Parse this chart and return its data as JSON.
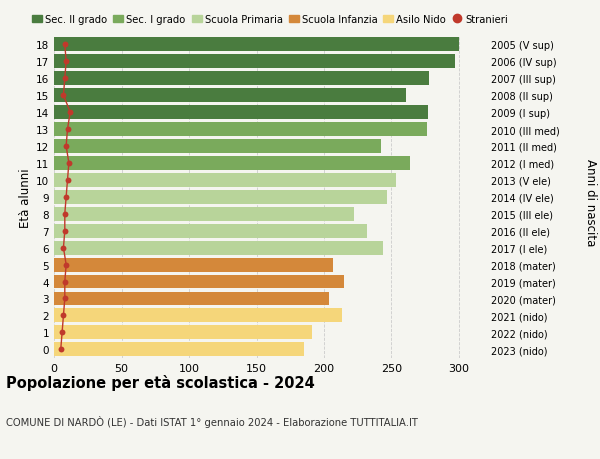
{
  "ages": [
    18,
    17,
    16,
    15,
    14,
    13,
    12,
    11,
    10,
    9,
    8,
    7,
    6,
    5,
    4,
    3,
    2,
    1,
    0
  ],
  "years": [
    "2005 (V sup)",
    "2006 (IV sup)",
    "2007 (III sup)",
    "2008 (II sup)",
    "2009 (I sup)",
    "2010 (III med)",
    "2011 (II med)",
    "2012 (I med)",
    "2013 (V ele)",
    "2014 (IV ele)",
    "2015 (III ele)",
    "2016 (II ele)",
    "2017 (I ele)",
    "2018 (mater)",
    "2019 (mater)",
    "2020 (mater)",
    "2021 (nido)",
    "2022 (nido)",
    "2023 (nido)"
  ],
  "values": [
    300,
    297,
    278,
    261,
    277,
    276,
    242,
    264,
    253,
    247,
    222,
    232,
    244,
    207,
    215,
    204,
    213,
    191,
    185
  ],
  "stranieri": [
    8,
    9,
    8,
    7,
    12,
    10,
    9,
    11,
    10,
    9,
    8,
    8,
    7,
    9,
    8,
    8,
    7,
    6,
    5
  ],
  "bar_colors": [
    "#4a7c3f",
    "#4a7c3f",
    "#4a7c3f",
    "#4a7c3f",
    "#4a7c3f",
    "#7aaa5c",
    "#7aaa5c",
    "#7aaa5c",
    "#b8d49a",
    "#b8d49a",
    "#b8d49a",
    "#b8d49a",
    "#b8d49a",
    "#d4883a",
    "#d4883a",
    "#d4883a",
    "#f5d67a",
    "#f5d67a",
    "#f5d67a"
  ],
  "legend_labels": [
    "Sec. II grado",
    "Sec. I grado",
    "Scuola Primaria",
    "Scuola Infanzia",
    "Asilo Nido",
    "Stranieri"
  ],
  "legend_colors": [
    "#4a7c3f",
    "#7aaa5c",
    "#b8d49a",
    "#d4883a",
    "#f5d67a",
    "#c0392b"
  ],
  "title": "Popolazione per età scolastica - 2024",
  "subtitle": "COMUNE DI NARDÒ (LE) - Dati ISTAT 1° gennaio 2024 - Elaborazione TUTTITALIA.IT",
  "ylabel": "Età alunni",
  "ylabel2": "Anni di nascita",
  "xlim": [
    0,
    320
  ],
  "xticks": [
    0,
    50,
    100,
    150,
    200,
    250,
    300
  ],
  "background_color": "#f5f5f0",
  "grid_color": "#cccccc",
  "bar_height": 0.82,
  "stranieri_color": "#c0392b"
}
